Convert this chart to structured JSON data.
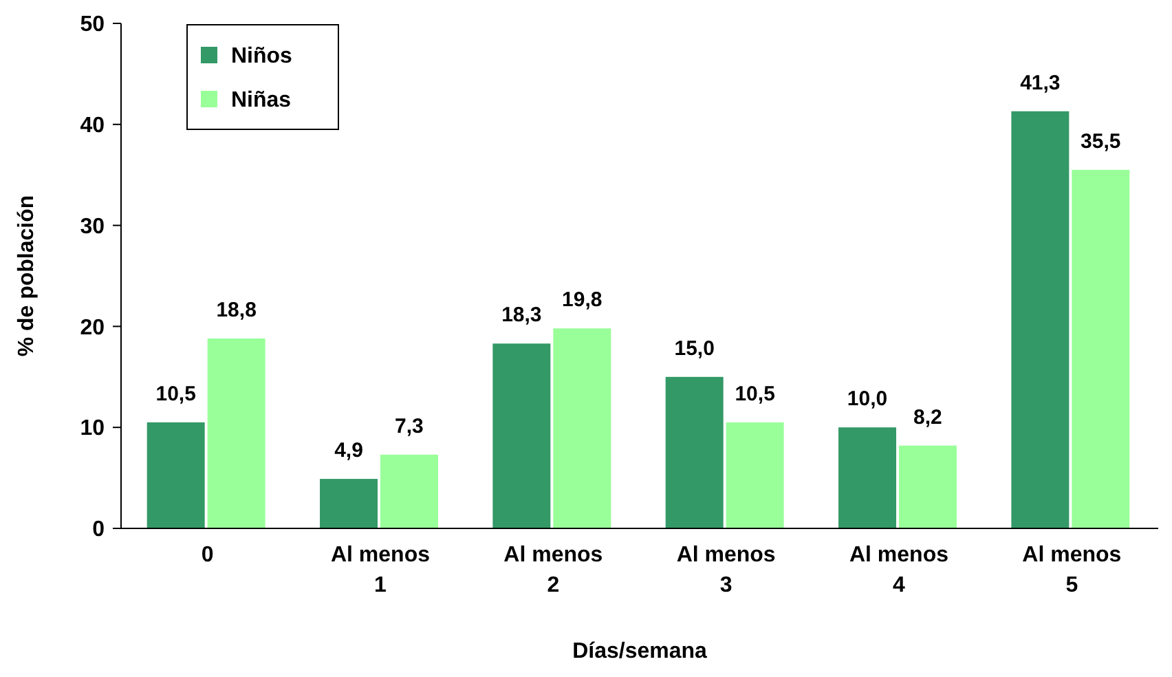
{
  "chart_data": {
    "type": "bar",
    "xlabel": "Días/semana",
    "ylabel": "% de población",
    "categories": [
      "0",
      "Al menos 1",
      "Al menos 2",
      "Al menos 3",
      "Al menos 4",
      "Al menos 5"
    ],
    "series": [
      {
        "name": "Niños",
        "color": "#339966",
        "values": [
          10.5,
          4.9,
          18.3,
          15.0,
          10.0,
          41.3
        ],
        "value_labels": [
          "10,5",
          "4,9",
          "18,3",
          "15,0",
          "10,0",
          "41,3"
        ]
      },
      {
        "name": "Niñas",
        "color": "#99ff99",
        "values": [
          18.8,
          7.3,
          19.8,
          10.5,
          8.2,
          35.5
        ],
        "value_labels": [
          "18,8",
          "7,3",
          "19,8",
          "10,5",
          "8,2",
          "35,5"
        ]
      }
    ],
    "ylim": [
      0,
      50
    ],
    "yticks": [
      0,
      10,
      20,
      30,
      40,
      50
    ],
    "grid": false,
    "legend": "top left"
  }
}
